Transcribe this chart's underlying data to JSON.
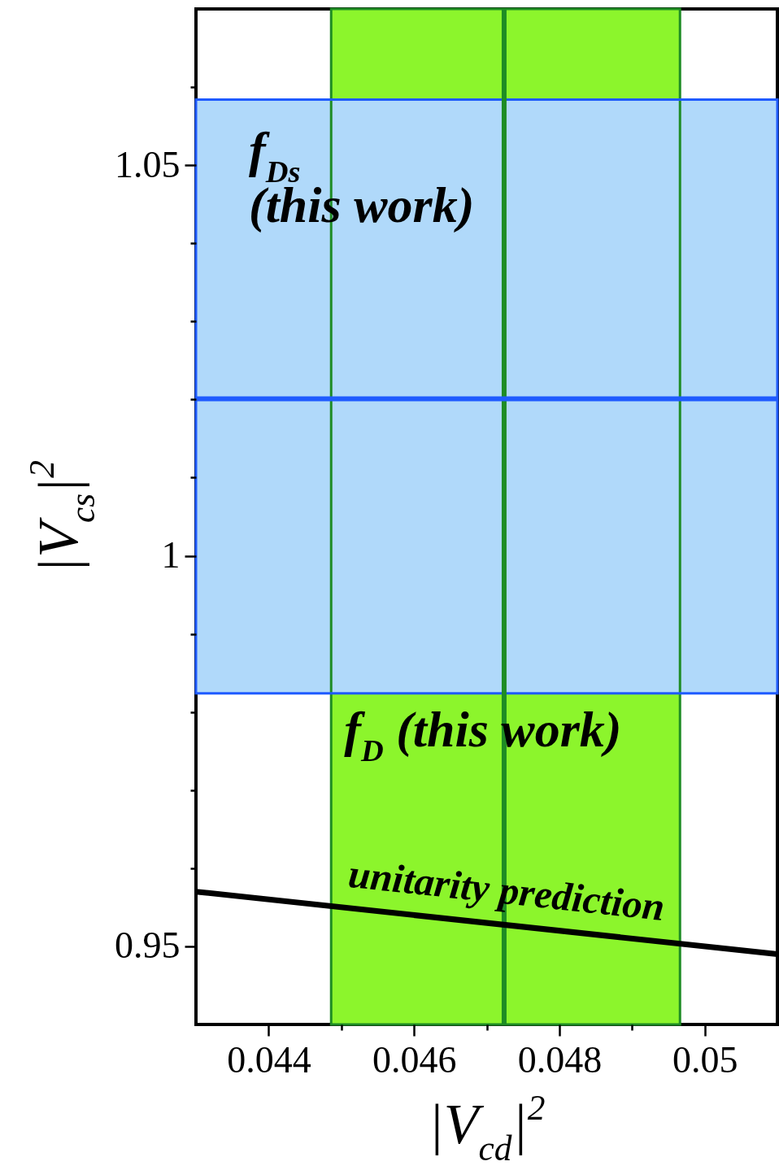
{
  "chart_data": {
    "type": "line",
    "xlabel": "|V$_{cd}$|$^{2}$",
    "ylabel": "|V$_{cs}$|$^{2}$",
    "xlim": [
      0.043,
      0.051
    ],
    "ylim": [
      0.94,
      1.07
    ],
    "xticks": [
      0.044,
      {
        "value": 0.045,
        "label": null
      },
      0.046,
      {
        "value": 0.047,
        "label": null
      },
      0.048,
      {
        "value": 0.049,
        "label": null
      },
      0.05
    ],
    "yticks": [
      0.95,
      {
        "value": 0.96,
        "label": null
      },
      {
        "value": 0.97,
        "label": null
      },
      {
        "value": 0.98,
        "label": null
      },
      {
        "value": 0.99,
        "label": null
      },
      1,
      {
        "value": 1.01,
        "label": null
      },
      {
        "value": 1.02,
        "label": null
      },
      {
        "value": 1.03,
        "label": null
      },
      {
        "value": 1.04,
        "label": null
      },
      1.05,
      {
        "value": 1.06,
        "label": null
      }
    ],
    "series": [
      {
        "name": "unitarity prediction",
        "color": "#000000",
        "x": [
          0.043,
          0.051
        ],
        "values": [
          0.957,
          0.949
        ]
      }
    ],
    "bands": [
      {
        "axis": "x",
        "from": 0.04486,
        "to": 0.04966,
        "label": "f$_{D}$ (this work)",
        "color": "#8cf52c"
      },
      {
        "axis": "y",
        "from": 0.9824,
        "to": 1.0584,
        "label": "f$_{Ds}$ (this work)",
        "color": "#b0d9fa"
      }
    ],
    "ref_lines": [
      {
        "axis": "x",
        "value": 0.04724,
        "color": "#1e8c24"
      },
      {
        "axis": "y",
        "value": 1.0201,
        "color": "#1f5bff"
      }
    ]
  }
}
